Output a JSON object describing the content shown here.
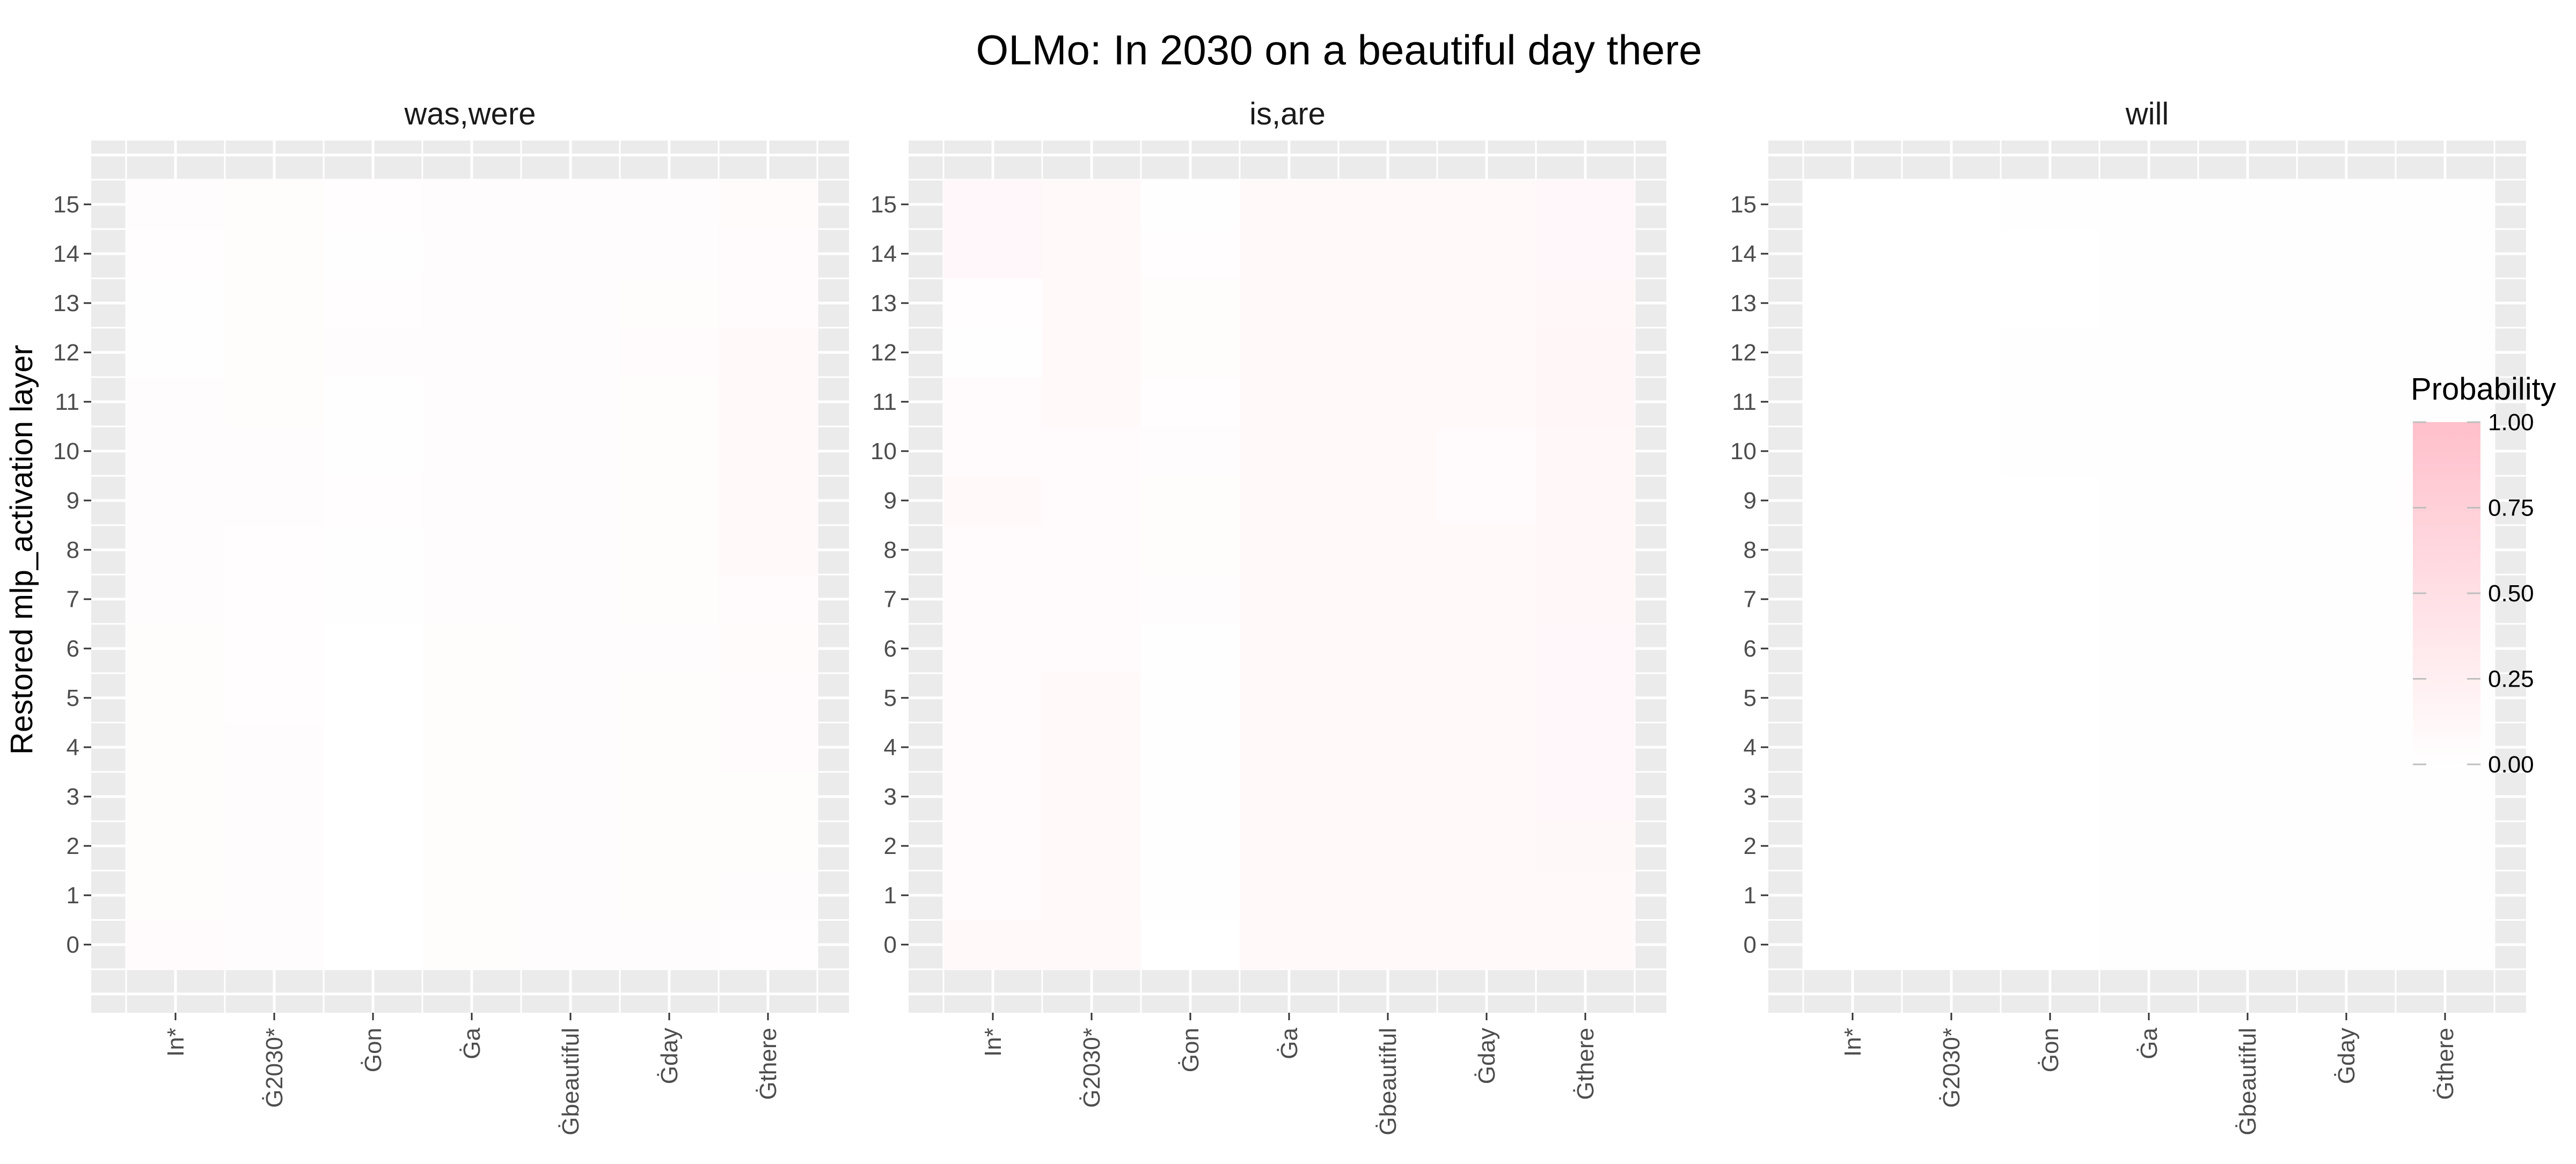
{
  "chart_data": {
    "type": "heatmap",
    "title": "OLMo: In 2030 on a beautiful day there",
    "ylabel": "Restored mlp_activation layer",
    "xlabel": "",
    "x": [
      "In*",
      "Ġ2030*",
      "Ġon",
      "Ġa",
      "Ġbeautiful",
      "Ġday",
      "Ġthere"
    ],
    "y": [
      0,
      1,
      2,
      3,
      4,
      5,
      6,
      7,
      8,
      9,
      10,
      11,
      12,
      13,
      14,
      15
    ],
    "grid": true,
    "legend": {
      "title": "Probability",
      "position": "right",
      "ticks": [
        "0.00",
        "0.25",
        "0.50",
        "0.75",
        "1.00"
      ],
      "low_color": "#ffffff",
      "high_color": "#ffc0cb"
    },
    "colors": {
      "panel_background": "#ebebeb",
      "grid_line": "#ffffff",
      "high": "#ffc0cb",
      "low": "#ffffff"
    },
    "panels": [
      {
        "name": "was,were",
        "values": [
          [
            0.06,
            0.04,
            0.0,
            0.05,
            0.04,
            0.04,
            0.03
          ],
          [
            0.05,
            0.04,
            0.0,
            0.05,
            0.04,
            0.05,
            0.04
          ],
          [
            0.05,
            0.04,
            0.0,
            0.05,
            0.04,
            0.05,
            0.05
          ],
          [
            0.05,
            0.04,
            0.0,
            0.05,
            0.04,
            0.05,
            0.05
          ],
          [
            0.05,
            0.04,
            0.0,
            0.05,
            0.04,
            0.05,
            0.06
          ],
          [
            0.05,
            0.03,
            0.0,
            0.05,
            0.04,
            0.05,
            0.06
          ],
          [
            0.05,
            0.03,
            0.0,
            0.05,
            0.04,
            0.04,
            0.07
          ],
          [
            0.04,
            0.03,
            0.01,
            0.04,
            0.04,
            0.05,
            0.08
          ],
          [
            0.04,
            0.03,
            0.02,
            0.04,
            0.04,
            0.05,
            0.09
          ],
          [
            0.04,
            0.04,
            0.03,
            0.04,
            0.04,
            0.05,
            0.09
          ],
          [
            0.04,
            0.04,
            0.02,
            0.04,
            0.04,
            0.05,
            0.09
          ],
          [
            0.04,
            0.05,
            0.01,
            0.04,
            0.04,
            0.05,
            0.09
          ],
          [
            0.01,
            0.05,
            0.04,
            0.04,
            0.04,
            0.06,
            0.09
          ],
          [
            0.01,
            0.05,
            0.03,
            0.04,
            0.04,
            0.05,
            0.08
          ],
          [
            0.03,
            0.05,
            0.02,
            0.04,
            0.04,
            0.04,
            0.08
          ],
          [
            0.04,
            0.05,
            0.03,
            0.04,
            0.04,
            0.04,
            0.07
          ]
        ]
      },
      {
        "name": "is,are",
        "values": [
          [
            0.09,
            0.09,
            0.0,
            0.09,
            0.09,
            0.09,
            0.1
          ],
          [
            0.08,
            0.09,
            0.01,
            0.09,
            0.09,
            0.09,
            0.1
          ],
          [
            0.08,
            0.09,
            0.01,
            0.09,
            0.09,
            0.09,
            0.11
          ],
          [
            0.08,
            0.09,
            0.01,
            0.09,
            0.09,
            0.09,
            0.12
          ],
          [
            0.08,
            0.09,
            0.01,
            0.09,
            0.09,
            0.09,
            0.12
          ],
          [
            0.08,
            0.09,
            0.01,
            0.09,
            0.09,
            0.09,
            0.12
          ],
          [
            0.08,
            0.08,
            0.01,
            0.09,
            0.09,
            0.09,
            0.12
          ],
          [
            0.08,
            0.08,
            0.04,
            0.09,
            0.09,
            0.09,
            0.13
          ],
          [
            0.08,
            0.08,
            0.05,
            0.09,
            0.09,
            0.09,
            0.13
          ],
          [
            0.09,
            0.08,
            0.05,
            0.09,
            0.09,
            0.08,
            0.13
          ],
          [
            0.08,
            0.08,
            0.04,
            0.09,
            0.09,
            0.08,
            0.13
          ],
          [
            0.08,
            0.09,
            0.03,
            0.09,
            0.09,
            0.09,
            0.14
          ],
          [
            0.01,
            0.1,
            0.05,
            0.09,
            0.09,
            0.1,
            0.14
          ],
          [
            0.03,
            0.1,
            0.05,
            0.09,
            0.09,
            0.1,
            0.13
          ],
          [
            0.12,
            0.09,
            0.03,
            0.09,
            0.09,
            0.1,
            0.12
          ],
          [
            0.12,
            0.09,
            0.02,
            0.09,
            0.09,
            0.09,
            0.12
          ]
        ]
      },
      {
        "name": "will",
        "values": [
          [
            0.0,
            0.0,
            0.0,
            0.01,
            0.01,
            0.01,
            0.01
          ],
          [
            0.0,
            0.0,
            0.0,
            0.01,
            0.01,
            0.01,
            0.01
          ],
          [
            0.0,
            0.0,
            0.0,
            0.01,
            0.01,
            0.01,
            0.01
          ],
          [
            0.0,
            0.0,
            0.0,
            0.01,
            0.01,
            0.01,
            0.01
          ],
          [
            0.0,
            0.0,
            0.0,
            0.01,
            0.01,
            0.01,
            0.01
          ],
          [
            0.0,
            0.0,
            0.0,
            0.01,
            0.01,
            0.01,
            0.02
          ],
          [
            0.0,
            0.0,
            0.0,
            0.01,
            0.01,
            0.01,
            0.02
          ],
          [
            0.0,
            0.0,
            0.0,
            0.01,
            0.01,
            0.01,
            0.02
          ],
          [
            0.0,
            0.0,
            0.0,
            0.01,
            0.01,
            0.01,
            0.02
          ],
          [
            0.0,
            0.0,
            0.0,
            0.01,
            0.01,
            0.01,
            0.03
          ],
          [
            0.0,
            0.0,
            0.01,
            0.01,
            0.01,
            0.01,
            0.02
          ],
          [
            0.0,
            0.0,
            0.01,
            0.01,
            0.01,
            0.01,
            0.02
          ],
          [
            0.0,
            0.0,
            0.01,
            0.01,
            0.01,
            0.01,
            0.02
          ],
          [
            0.0,
            0.0,
            0.0,
            0.01,
            0.01,
            0.01,
            0.02
          ],
          [
            0.0,
            0.0,
            0.0,
            0.01,
            0.01,
            0.01,
            0.02
          ],
          [
            0.0,
            0.0,
            0.01,
            0.01,
            0.01,
            0.01,
            0.02
          ]
        ]
      }
    ]
  }
}
